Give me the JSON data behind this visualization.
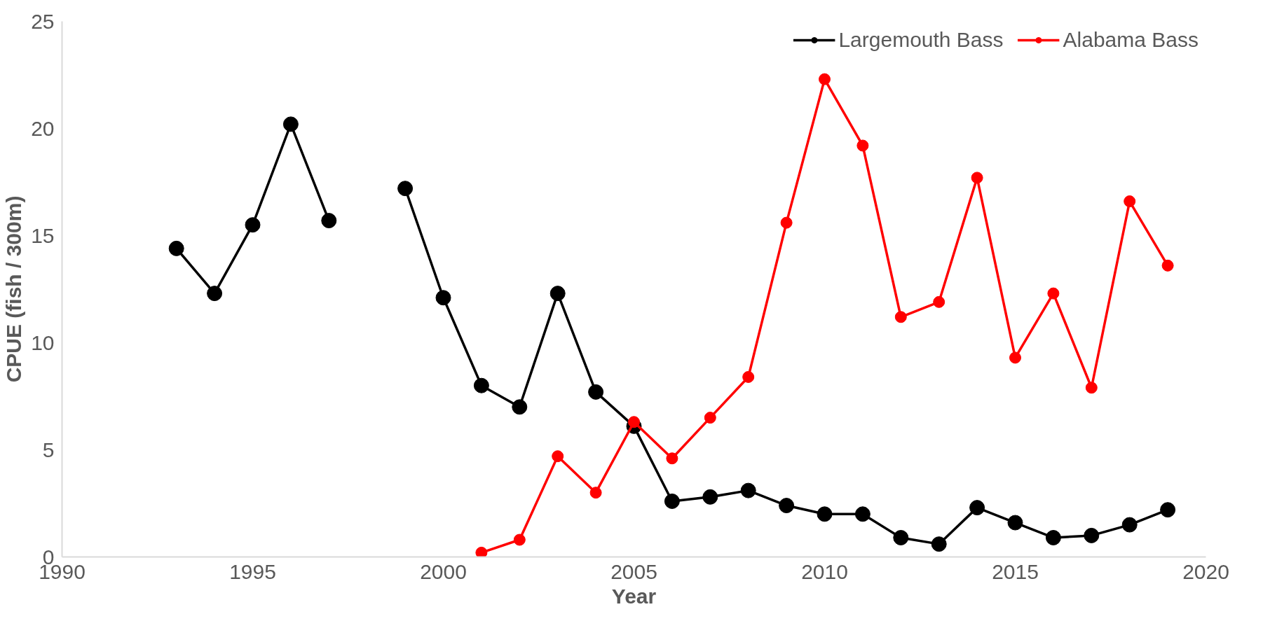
{
  "chart_data": {
    "type": "line",
    "xlabel": "Year",
    "ylabel": "CPUE (fish / 300m)",
    "xlim": [
      1990,
      2020
    ],
    "xticks": [
      1990,
      1995,
      2000,
      2005,
      2010,
      2015,
      2020
    ],
    "ylim": [
      0,
      25
    ],
    "yticks": [
      0,
      5,
      10,
      15,
      20,
      25
    ],
    "grid": false,
    "legend": "top right",
    "marker": "circle",
    "line_style": "solid",
    "series": [
      {
        "name": "Largemouth Bass",
        "color": "#000000",
        "x": [
          1993,
          1994,
          1995,
          1996,
          1997,
          1998,
          1999,
          2000,
          2001,
          2002,
          2003,
          2004,
          2005,
          2006,
          2007,
          2008,
          2009,
          2010,
          2011,
          2012,
          2013,
          2014,
          2015,
          2016,
          2017,
          2018,
          2019
        ],
        "values": [
          14.4,
          12.3,
          15.5,
          20.2,
          15.7,
          null,
          17.2,
          12.1,
          8.0,
          7.0,
          12.3,
          7.7,
          6.1,
          2.6,
          2.8,
          3.1,
          2.4,
          2.0,
          2.0,
          0.9,
          0.6,
          2.3,
          1.6,
          0.9,
          1.0,
          1.5,
          2.2
        ]
      },
      {
        "name": "Alabama Bass",
        "color": "#ff0000",
        "x": [
          2001,
          2002,
          2003,
          2004,
          2005,
          2006,
          2007,
          2008,
          2009,
          2010,
          2011,
          2012,
          2013,
          2014,
          2015,
          2016,
          2017,
          2018,
          2019
        ],
        "values": [
          0.2,
          0.8,
          4.7,
          3.0,
          6.3,
          4.6,
          6.5,
          8.4,
          15.6,
          22.3,
          19.2,
          11.2,
          11.9,
          17.7,
          9.3,
          12.3,
          7.9,
          16.6,
          13.6
        ]
      }
    ]
  }
}
